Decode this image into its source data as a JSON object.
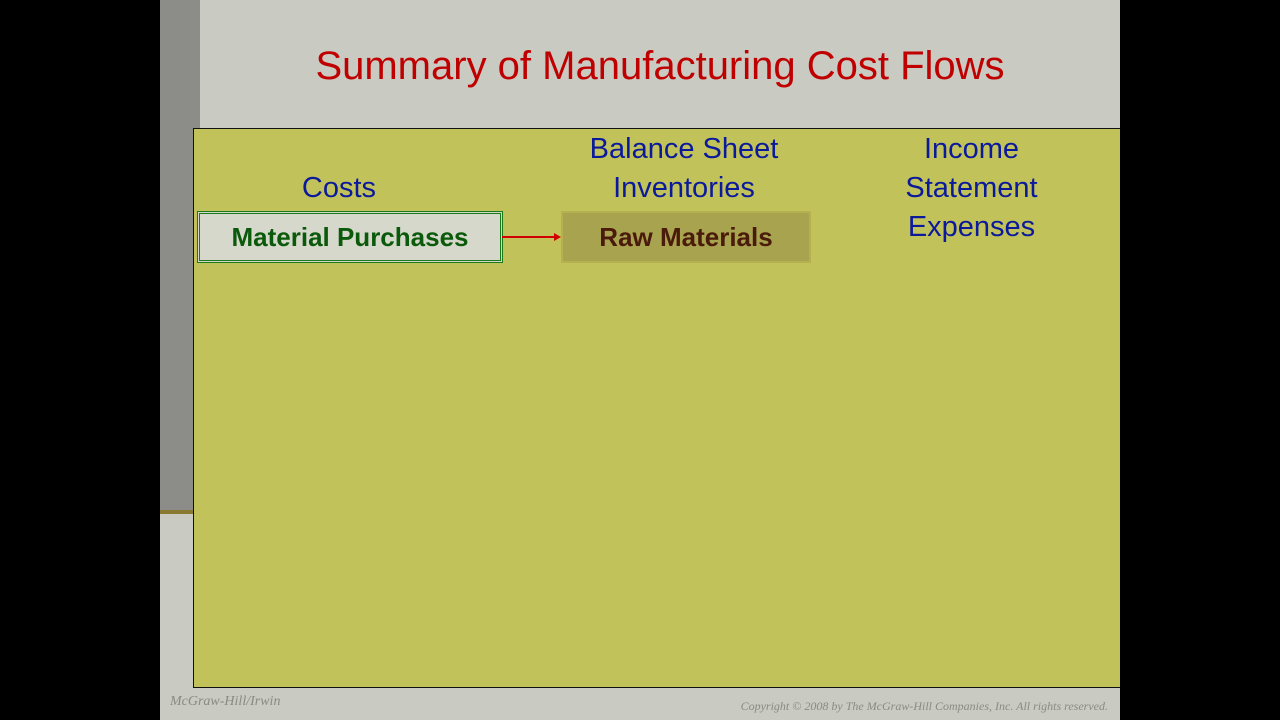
{
  "title": "Summary of Manufacturing Cost Flows",
  "headers": {
    "costs": "Costs",
    "balance_sheet": "Balance Sheet\nInventories",
    "income_statement": "Income\nStatement\nExpenses"
  },
  "boxes": {
    "material_purchases": "Material Purchases",
    "raw_materials": "Raw Materials"
  },
  "colors": {
    "title": "#c00000",
    "headers": "#0b1a9a",
    "panel": "#c2c25a"
  },
  "footer": {
    "left": "McGraw-Hill/Irwin",
    "right": "Copyright © 2008 by The McGraw-Hill Companies, Inc. All rights reserved."
  }
}
